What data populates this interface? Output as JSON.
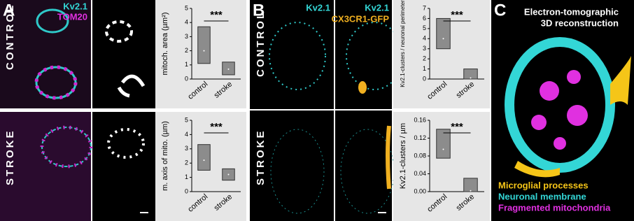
{
  "panels": {
    "a": {
      "label": "A",
      "stain_1": "Kv2.1",
      "stain_2": "TOM20",
      "row_1": "CONTROL",
      "row_2": "STROKE"
    },
    "b": {
      "label": "B",
      "stain_1": "Kv2.1",
      "stain_2": "Kv2.1",
      "stain_3": "CX3CR1-GFP",
      "row_1": "CONTROL",
      "row_2": "STROKE"
    },
    "c": {
      "label": "C",
      "title_1": "Electron-tomographic",
      "title_2": "3D reconstruction",
      "legend": [
        {
          "name": "Microglial processes",
          "color": "#f5c518"
        },
        {
          "name": "Neuronal membrane",
          "color": "#33d6d6"
        },
        {
          "name": "Fragmented mitochondria",
          "color": "#e030e0"
        }
      ]
    }
  },
  "chart_data": [
    {
      "type": "box",
      "ylabel": "mitoch. area (µm²)",
      "categories": [
        "control",
        "stroke"
      ],
      "color": "#8c8c8c",
      "boxes": [
        {
          "low": 1.1,
          "median": 2.0,
          "high": 3.7
        },
        {
          "low": 0.3,
          "median": 0.7,
          "high": 1.2
        }
      ],
      "ylim": [
        0,
        5
      ],
      "yticks": [
        0,
        1,
        2,
        3,
        4,
        5
      ],
      "significance": "***"
    },
    {
      "type": "box",
      "ylabel": "m. axis of mito. (µm)",
      "categories": [
        "control",
        "stroke"
      ],
      "color": "#8c8c8c",
      "boxes": [
        {
          "low": 1.5,
          "median": 2.2,
          "high": 3.3
        },
        {
          "low": 0.8,
          "median": 1.2,
          "high": 1.6
        }
      ],
      "ylim": [
        0,
        5
      ],
      "yticks": [
        0,
        1,
        2,
        3,
        4,
        5
      ],
      "significance": "***"
    },
    {
      "type": "box",
      "ylabel": "Kv2.1-clusters / neuronal perimeter",
      "categories": [
        "control",
        "stroke"
      ],
      "color": "#8c8c8c",
      "boxes": [
        {
          "low": 3,
          "median": 4,
          "high": 6
        },
        {
          "low": 0,
          "median": 0.1,
          "high": 1
        }
      ],
      "ylim": [
        0,
        7
      ],
      "yticks": [
        0,
        1,
        2,
        3,
        4,
        5,
        6,
        7
      ],
      "significance": "***"
    },
    {
      "type": "box",
      "ylabel": "Kv2.1-clusters / µm",
      "categories": [
        "control",
        "stroke"
      ],
      "color": "#8c8c8c",
      "boxes": [
        {
          "low": 0.075,
          "median": 0.095,
          "high": 0.14
        },
        {
          "low": 0,
          "median": 0.002,
          "high": 0.03
        }
      ],
      "ylim": [
        0,
        0.16
      ],
      "yticks": [
        {
          "value": 0,
          "label": "0.00"
        },
        {
          "value": 0.04,
          "label": "0.04"
        },
        {
          "value": 0.08,
          "label": "0.08"
        },
        {
          "value": 0.12,
          "label": "0.12"
        },
        {
          "value": 0.16,
          "label": "0.16"
        }
      ],
      "significance": "***"
    }
  ]
}
